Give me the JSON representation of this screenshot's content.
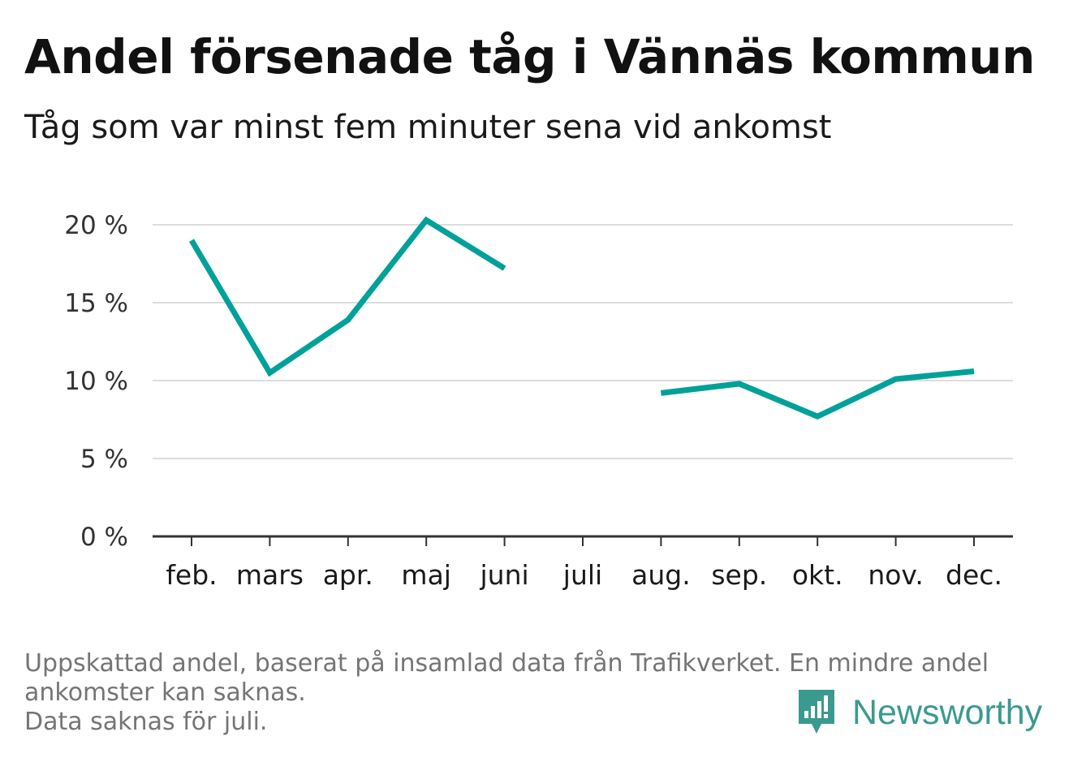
{
  "title": "Andel försenade tåg i Vännäs kommun",
  "subtitle": "Tåg som var minst fem minuter sena vid ankomst",
  "footnote": {
    "line1": "Uppskattad andel, baserat på insamlad data från Trafikverket. En mindre andel",
    "line2": "ankomster kan saknas.",
    "line3": "Data saknas för juli."
  },
  "brand": {
    "name": "Newsworthy",
    "icon": "newsworthy-logo-icon",
    "color": "#3a9a8f"
  },
  "chart_data": {
    "type": "line",
    "categories": [
      "feb.",
      "mars",
      "apr.",
      "maj",
      "juni",
      "juli",
      "aug.",
      "sep.",
      "okt.",
      "nov.",
      "dec."
    ],
    "series": [
      {
        "values": [
          19.0,
          10.5,
          13.9,
          20.3,
          17.2,
          null,
          9.2,
          9.8,
          7.7,
          10.1,
          10.6
        ],
        "color": "#00a199"
      }
    ],
    "yticks": [
      0,
      5,
      10,
      15,
      20
    ],
    "ytick_labels": [
      "0 %",
      "5 %",
      "10 %",
      "15 %",
      "20 %"
    ],
    "ylim": [
      0,
      20
    ],
    "grid": true,
    "gridColor": "#dddddd",
    "axisColor": "#333333"
  }
}
